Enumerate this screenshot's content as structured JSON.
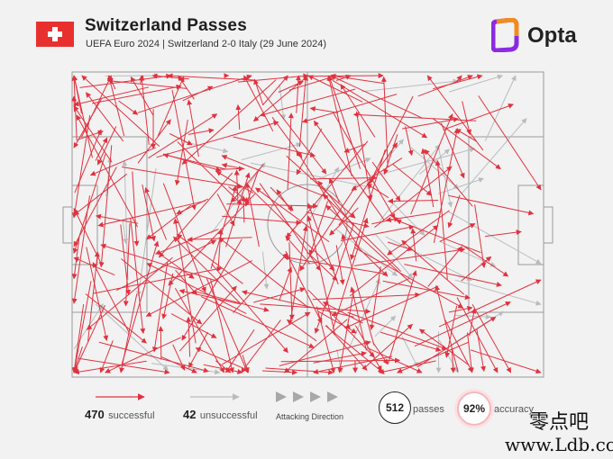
{
  "header": {
    "title": "Switzerland Passes",
    "subtitle": "UEFA Euro 2024 | Switzerland 2-0 Italy (29 June 2024)",
    "brand": "Opta",
    "flag_icon": "swiss-flag-icon"
  },
  "colors": {
    "successful": "#e0323f",
    "unsuccessful": "#b8bcbf",
    "pitch_lines": "#9a9a9a",
    "brand_orange": "#f28c1e",
    "brand_purple": "#8a2be2"
  },
  "legend": {
    "successful_count": "470",
    "successful_label": "successful",
    "unsuccessful_count": "42",
    "unsuccessful_label": "unsuccessful",
    "direction_label": "Attacking Direction",
    "passes_count": "512",
    "passes_label": "passes",
    "accuracy_value": "92%",
    "accuracy_label": "accuracy"
  },
  "watermark": {
    "cn": "零点吧",
    "url": "www.Ldb.cc"
  }
}
